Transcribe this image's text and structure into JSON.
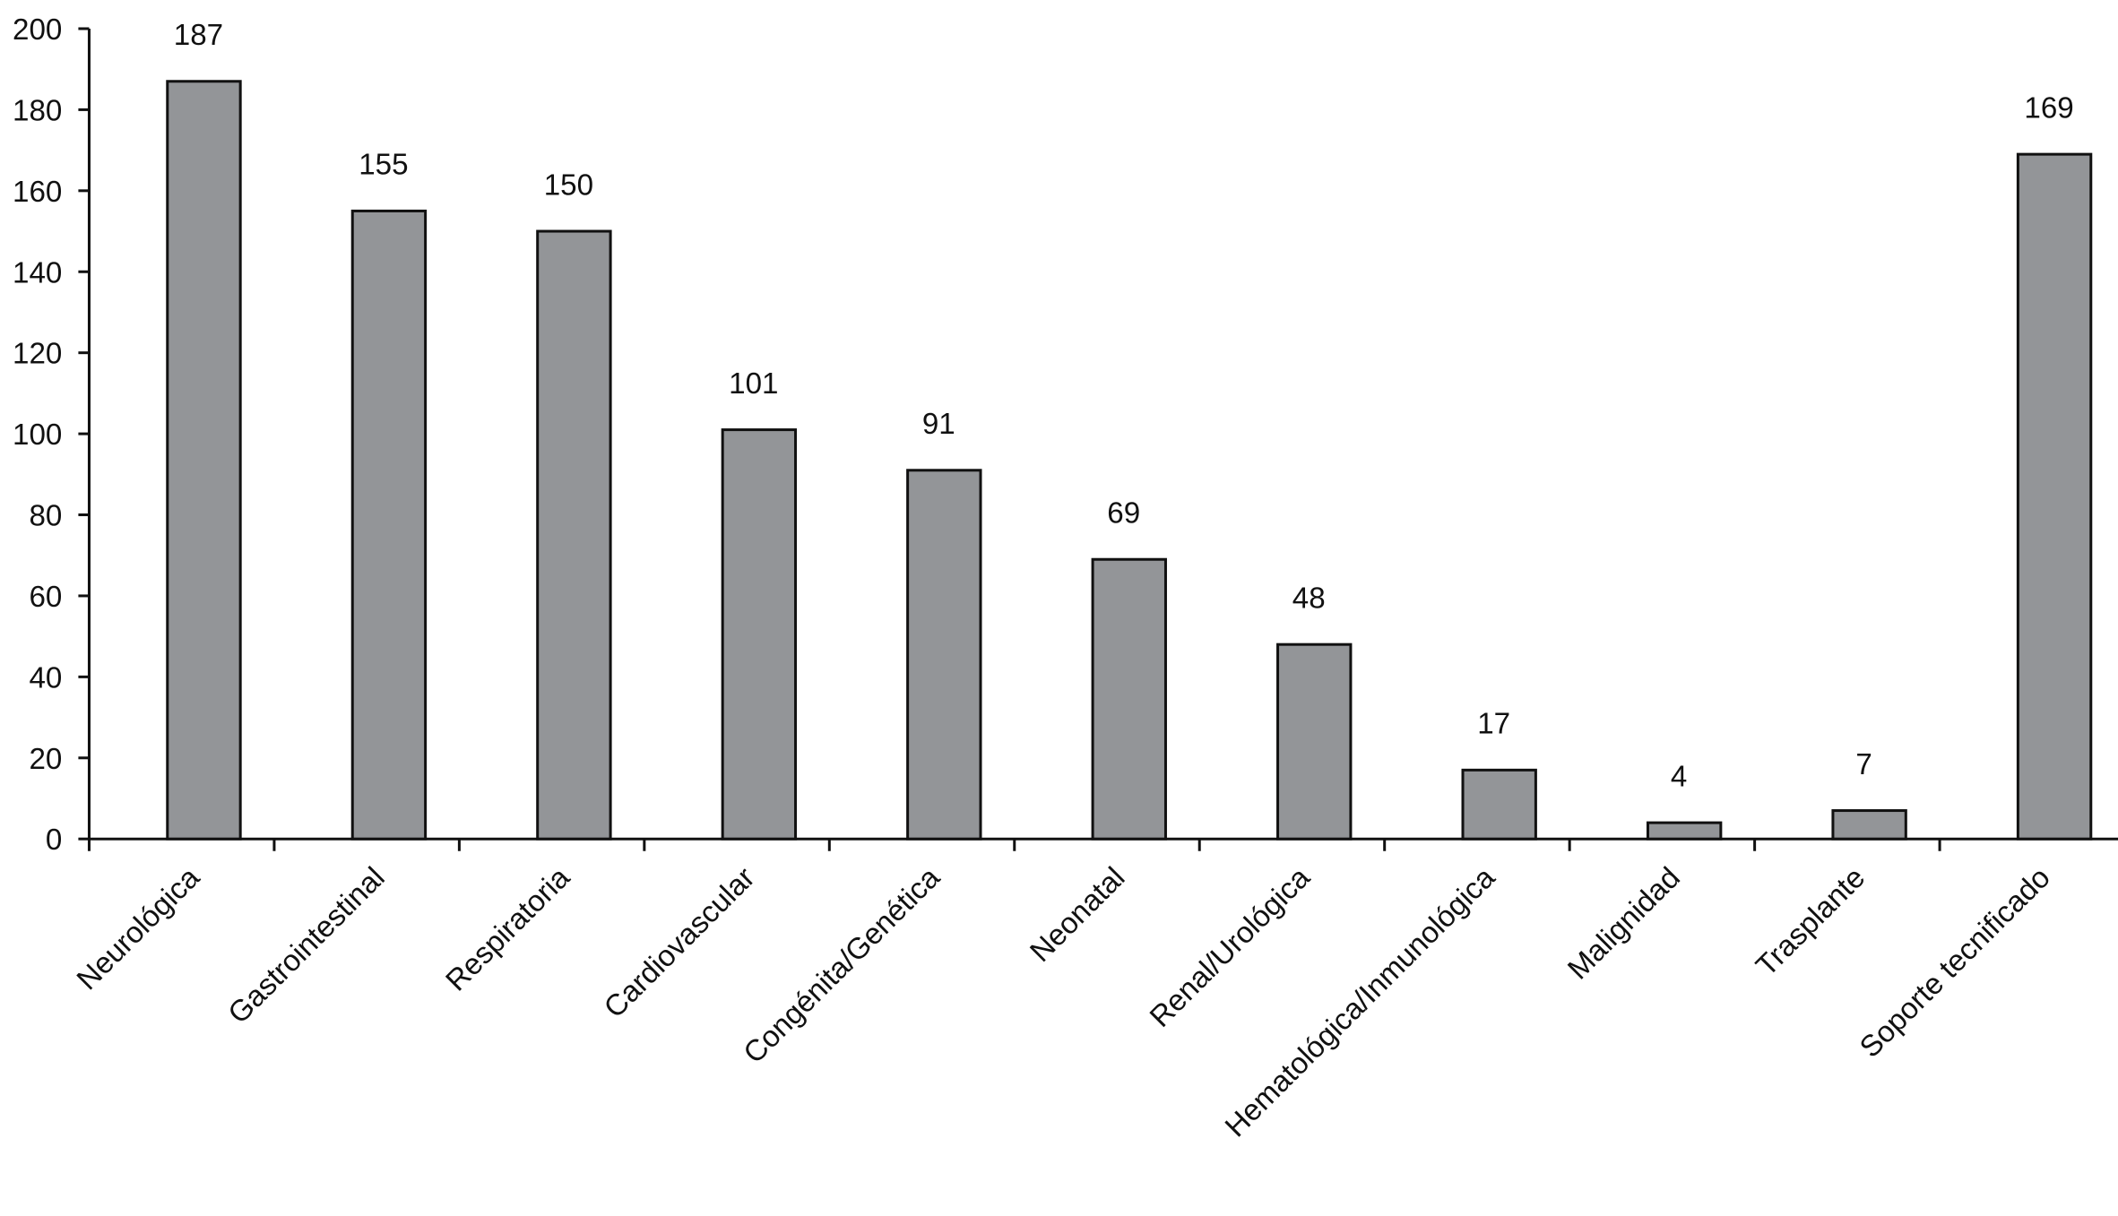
{
  "chart_data": {
    "type": "bar",
    "categories": [
      "Neurológica",
      "Gastrointestinal",
      "Respiratoria",
      "Cardiovascular",
      "Congénita/Genética",
      "Neonatal",
      "Renal/Urológica",
      "Hematológica/Inmunológica",
      "Malignidad",
      "Trasplante",
      "Soporte tecnificado"
    ],
    "values": [
      187,
      155,
      150,
      101,
      91,
      69,
      48,
      17,
      4,
      7,
      169
    ],
    "color": "#939598",
    "ylim": [
      0,
      200
    ],
    "yticks": [
      0,
      20,
      40,
      60,
      80,
      100,
      120,
      140,
      160,
      180,
      200
    ],
    "grid": false
  }
}
